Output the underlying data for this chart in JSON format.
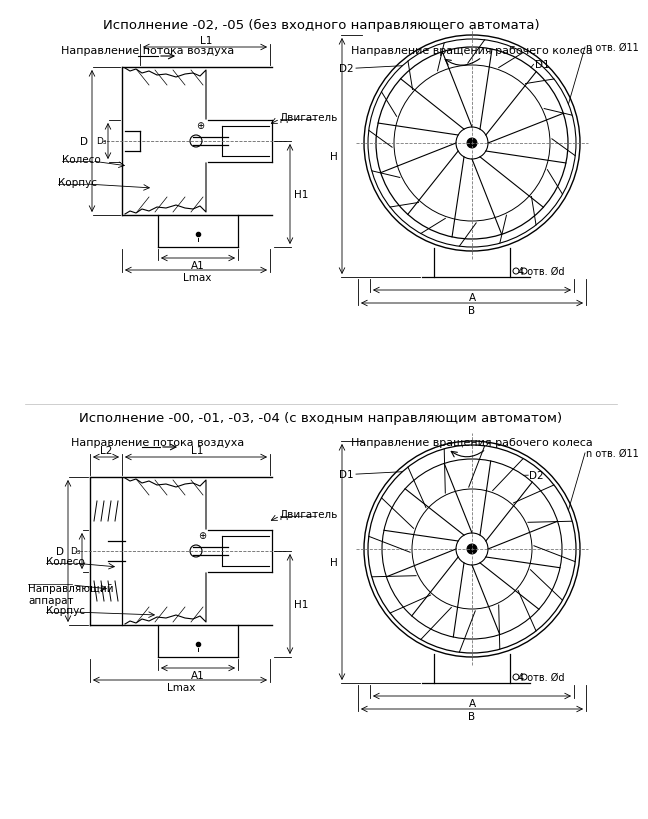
{
  "title1": "Исполнение -02, -05 (без входного направляющего автомата)",
  "title2": "Исполнение -00, -01, -03, -04 (с входным направляющим автоматом)",
  "subtitle_left": "Направление потока воздуха",
  "subtitle_right": "Направление вращения рабочего колеса",
  "bg_color": "#ffffff",
  "line_color": "#000000",
  "font_size_title": 9.5,
  "font_size_label": 8.0,
  "font_size_dim": 7.5,
  "label_koleso_top": "Колесо",
  "label_korpus_top": "Корпус",
  "label_dvigatel_top": "Двигатель",
  "label_koleso_bot": "Колесо",
  "label_naprav_bot": "Направляющий\nаппарат",
  "label_korpus_bot": "Корпус",
  "label_dvigatel_bot": "Двигатель",
  "label_n_otv": "n отв. Ø11",
  "label_4_otv": "4 отв. Ød"
}
